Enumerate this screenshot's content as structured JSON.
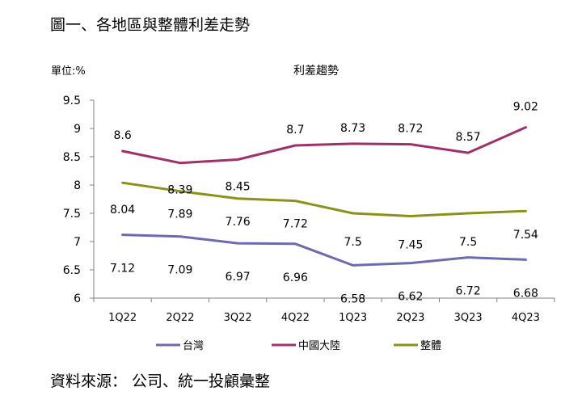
{
  "figure_title": "圖一、各地區與整體利差走勢",
  "source_note": "資料來源： 公司、統一投顧彙整",
  "chart_data": {
    "type": "line",
    "title": "利差趨勢",
    "unit_label": "單位:%",
    "categories": [
      "1Q22",
      "2Q22",
      "3Q22",
      "4Q22",
      "1Q23",
      "2Q23",
      "3Q23",
      "4Q23"
    ],
    "ylim": [
      6,
      9.5
    ],
    "yticks": [
      "6",
      "6.5",
      "7",
      "7.5",
      "8",
      "8.5",
      "9",
      "9.5"
    ],
    "grid": false,
    "legend_position": "bottom",
    "series": [
      {
        "name": "台灣",
        "color": "#6b6bb0",
        "values": [
          7.12,
          7.09,
          6.97,
          6.96,
          6.58,
          6.62,
          6.72,
          6.68
        ],
        "labels": [
          "7.12",
          "7.09",
          "6.97",
          "6.96",
          "6.58",
          "6.62",
          "6.72",
          "6.68"
        ]
      },
      {
        "name": "中國大陸",
        "color": "#a0306a",
        "values": [
          8.6,
          8.39,
          8.45,
          8.7,
          8.73,
          8.72,
          8.57,
          9.02
        ],
        "labels": [
          "8.6",
          "8.39",
          "8.45",
          "8.7",
          "8.73",
          "8.72",
          "8.57",
          "9.02"
        ]
      },
      {
        "name": "整體",
        "color": "#8c9117",
        "values": [
          8.04,
          7.89,
          7.76,
          7.72,
          7.5,
          7.45,
          7.5,
          7.54
        ],
        "labels": [
          "8.04",
          "7.89",
          "7.76",
          "7.72",
          "7.5",
          "7.45",
          "7.5",
          "7.54"
        ]
      }
    ]
  }
}
